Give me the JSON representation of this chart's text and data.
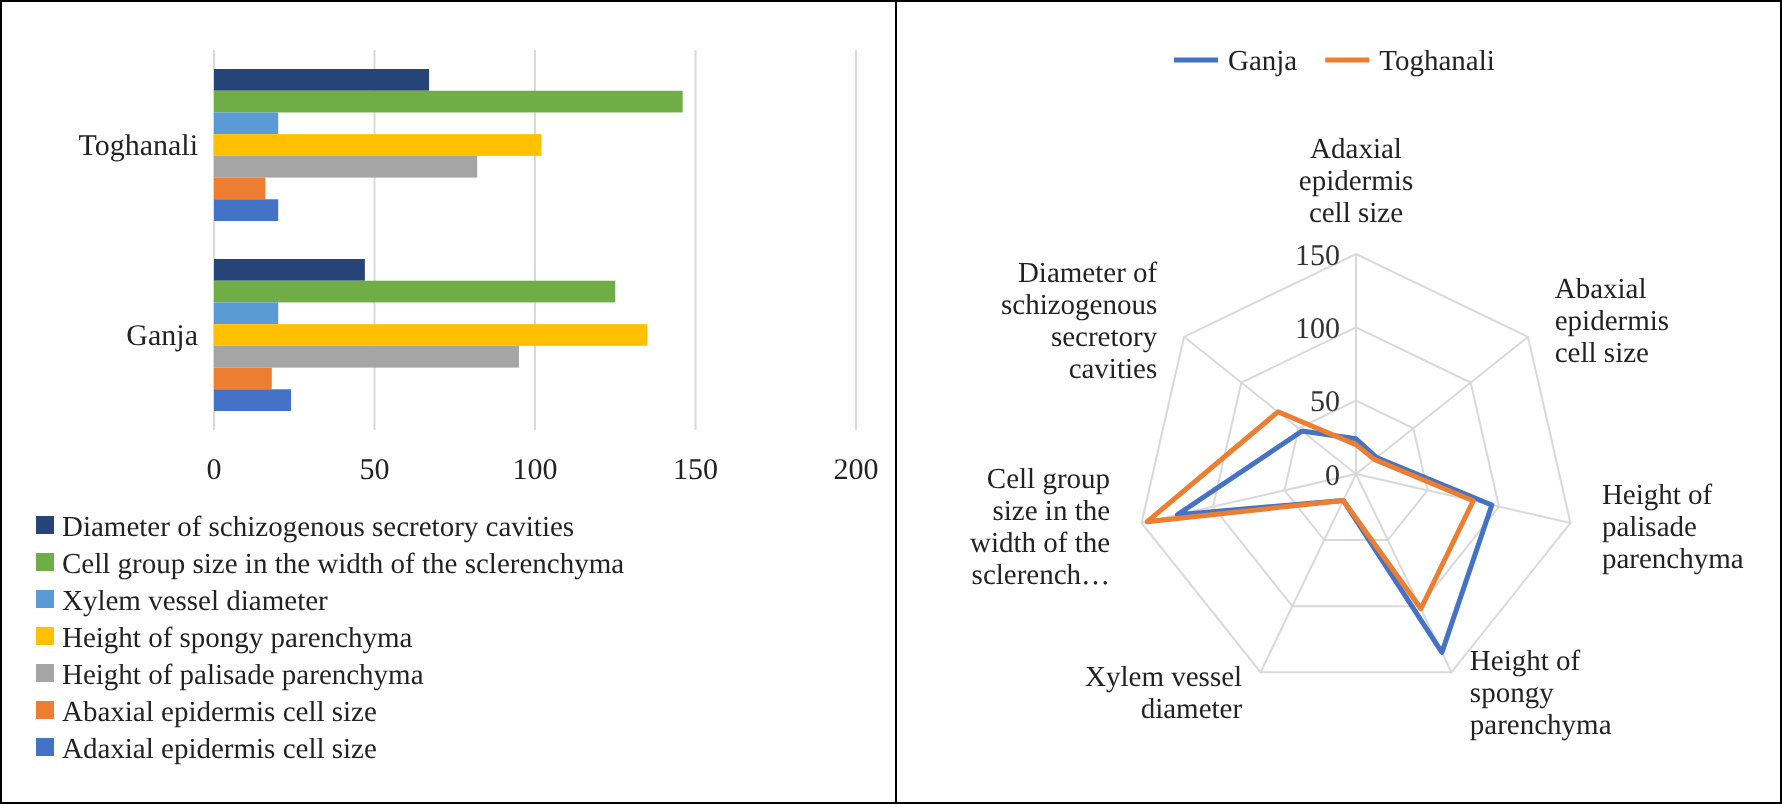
{
  "chart_data": [
    {
      "type": "bar",
      "orientation": "horizontal",
      "categories": [
        "Toghanali",
        "Ganja"
      ],
      "xlim": [
        0,
        200
      ],
      "xticks": [
        0,
        50,
        100,
        150,
        200
      ],
      "grid": "x",
      "legend": "bottom",
      "series": [
        {
          "name": "Diameter of schizogenous secretory cavities",
          "color": "#264478",
          "values": [
            67,
            47
          ]
        },
        {
          "name": "Cell group size in the width of the sclerenchyma",
          "color": "#70ad47",
          "values": [
            146,
            125
          ]
        },
        {
          "name": "Xylem vessel diameter",
          "color": "#5b9bd5",
          "values": [
            20,
            20
          ]
        },
        {
          "name": "Height of spongy parenchyma",
          "color": "#ffc000",
          "values": [
            102,
            135
          ]
        },
        {
          "name": "Height of palisade parenchyma",
          "color": "#a5a5a5",
          "values": [
            82,
            95
          ]
        },
        {
          "name": "Abaxial epidermis cell size",
          "color": "#ed7d31",
          "values": [
            16,
            18
          ]
        },
        {
          "name": "Adaxial epidermis cell size",
          "color": "#4472c4",
          "values": [
            20,
            24
          ]
        }
      ]
    },
    {
      "type": "radar",
      "categories": [
        "Adaxial epidermis cell size",
        "Abaxial epidermis cell size",
        "Height of palisade parenchyma",
        "Height of spongy parenchyma",
        "Xylem vessel diameter",
        "Cell group size in the width of the sclerench…",
        "Diameter of schizogenous secretory cavities"
      ],
      "ylim": [
        0,
        150
      ],
      "yticks": [
        0,
        50,
        100,
        150
      ],
      "grid": true,
      "legend": "top",
      "series": [
        {
          "name": "Ganja",
          "color": "#4472c4",
          "values": [
            24,
            18,
            95,
            135,
            20,
            125,
            47
          ]
        },
        {
          "name": "Toghanali",
          "color": "#ed7d31",
          "values": [
            20,
            16,
            82,
            102,
            20,
            146,
            68
          ]
        }
      ]
    }
  ]
}
